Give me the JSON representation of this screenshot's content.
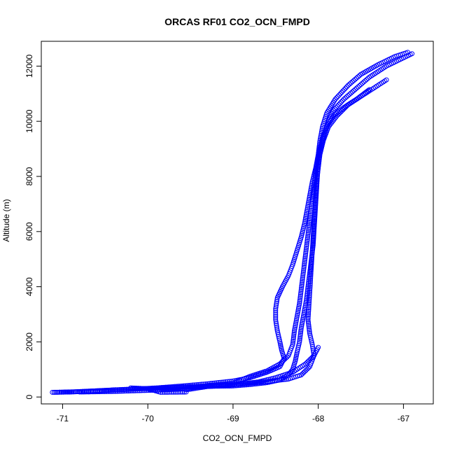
{
  "chart_data": {
    "type": "scatter",
    "title": "ORCAS RF01 CO2_OCN_FMPD",
    "xlabel": "CO2_OCN_FMPD",
    "ylabel": "Altitude (m)",
    "xlim": [
      -71.25,
      -66.65
    ],
    "ylim": [
      -250,
      12900
    ],
    "xticks": [
      -71,
      -70,
      -69,
      -68,
      -67
    ],
    "yticks": [
      0,
      2000,
      4000,
      6000,
      8000,
      10000,
      12000
    ],
    "grid": false,
    "marker": "open-circle",
    "color": "#0000ff",
    "series": [
      {
        "points": [
          [
            -71.12,
            170
          ],
          [
            -70.9,
            180
          ],
          [
            -70.7,
            210
          ],
          [
            -70.4,
            260
          ],
          [
            -70.1,
            300
          ],
          [
            -69.8,
            330
          ],
          [
            -69.5,
            360
          ],
          [
            -69.2,
            390
          ],
          [
            -69.0,
            400
          ],
          [
            -68.8,
            450
          ],
          [
            -68.6,
            520
          ],
          [
            -68.45,
            620
          ],
          [
            -68.35,
            800
          ],
          [
            -68.3,
            1000
          ],
          [
            -68.27,
            1300
          ],
          [
            -68.25,
            1600
          ],
          [
            -68.22,
            2000
          ],
          [
            -68.2,
            2500
          ],
          [
            -68.17,
            3000
          ],
          [
            -68.14,
            3500
          ],
          [
            -68.12,
            4000
          ],
          [
            -68.1,
            4500
          ],
          [
            -68.08,
            5000
          ],
          [
            -68.06,
            5500
          ],
          [
            -68.05,
            6000
          ],
          [
            -68.04,
            6500
          ],
          [
            -68.03,
            7000
          ],
          [
            -68.02,
            7500
          ],
          [
            -68.01,
            8000
          ],
          [
            -68.0,
            8500
          ],
          [
            -67.97,
            9000
          ],
          [
            -67.93,
            9500
          ],
          [
            -67.88,
            10000
          ],
          [
            -67.82,
            10400
          ],
          [
            -67.7,
            10800
          ],
          [
            -67.55,
            11200
          ],
          [
            -67.4,
            11600
          ],
          [
            -67.2,
            12000
          ],
          [
            -67.0,
            12300
          ],
          [
            -66.9,
            12450
          ]
        ]
      },
      {
        "points": [
          [
            -66.95,
            12500
          ],
          [
            -67.1,
            12350
          ],
          [
            -67.3,
            12050
          ],
          [
            -67.5,
            11700
          ],
          [
            -67.65,
            11300
          ],
          [
            -67.8,
            10800
          ],
          [
            -67.9,
            10300
          ],
          [
            -67.95,
            9800
          ],
          [
            -67.98,
            9300
          ],
          [
            -68.0,
            8800
          ],
          [
            -68.03,
            8300
          ],
          [
            -68.07,
            7800
          ],
          [
            -68.1,
            7300
          ],
          [
            -68.13,
            6800
          ],
          [
            -68.16,
            6300
          ],
          [
            -68.2,
            5800
          ],
          [
            -68.25,
            5300
          ],
          [
            -68.3,
            4800
          ],
          [
            -68.35,
            4400
          ],
          [
            -68.42,
            4000
          ],
          [
            -68.48,
            3600
          ],
          [
            -68.5,
            3200
          ],
          [
            -68.5,
            2800
          ],
          [
            -68.48,
            2400
          ],
          [
            -68.45,
            2000
          ],
          [
            -68.43,
            1700
          ],
          [
            -68.4,
            1400
          ],
          [
            -68.45,
            1100
          ],
          [
            -68.6,
            900
          ],
          [
            -68.8,
            700
          ],
          [
            -69.0,
            580
          ],
          [
            -69.3,
            480
          ],
          [
            -69.6,
            400
          ],
          [
            -69.9,
            330
          ],
          [
            -70.2,
            280
          ],
          [
            -70.5,
            240
          ],
          [
            -70.85,
            190
          ],
          [
            -71.1,
            170
          ]
        ]
      },
      {
        "points": [
          [
            -67.4,
            11150
          ],
          [
            -67.55,
            10800
          ],
          [
            -67.7,
            10500
          ],
          [
            -67.82,
            10200
          ],
          [
            -67.9,
            9800
          ],
          [
            -67.95,
            9400
          ],
          [
            -67.99,
            8900
          ],
          [
            -68.02,
            8400
          ],
          [
            -68.04,
            7900
          ],
          [
            -68.06,
            7400
          ],
          [
            -68.08,
            6900
          ],
          [
            -68.1,
            6400
          ],
          [
            -68.12,
            5900
          ],
          [
            -68.14,
            5400
          ],
          [
            -68.16,
            4900
          ],
          [
            -68.18,
            4400
          ],
          [
            -68.2,
            3900
          ],
          [
            -68.22,
            3400
          ],
          [
            -68.25,
            2900
          ],
          [
            -68.28,
            2400
          ],
          [
            -68.3,
            1900
          ],
          [
            -68.35,
            1500
          ],
          [
            -68.45,
            1200
          ],
          [
            -68.6,
            950
          ],
          [
            -68.8,
            750
          ],
          [
            -69.0,
            500
          ],
          [
            -69.3,
            420
          ],
          [
            -69.55,
            300
          ],
          [
            -69.8,
            260
          ],
          [
            -70.1,
            230
          ],
          [
            -70.4,
            200
          ],
          [
            -70.8,
            180
          ]
        ]
      },
      {
        "points": [
          [
            -68.0,
            1800
          ],
          [
            -68.05,
            1500
          ],
          [
            -68.15,
            1200
          ],
          [
            -68.3,
            900
          ],
          [
            -68.5,
            700
          ],
          [
            -68.7,
            550
          ],
          [
            -69.0,
            440
          ],
          [
            -69.3,
            380
          ],
          [
            -69.55,
            260
          ],
          [
            -69.55,
            180
          ],
          [
            -69.85,
            170
          ],
          [
            -70.0,
            300
          ],
          [
            -70.2,
            330
          ]
        ]
      },
      {
        "points": [
          [
            -67.2,
            11500
          ],
          [
            -67.35,
            11200
          ],
          [
            -67.5,
            10900
          ],
          [
            -67.65,
            10600
          ],
          [
            -67.78,
            10200
          ],
          [
            -67.88,
            9800
          ],
          [
            -67.94,
            9300
          ],
          [
            -67.98,
            8800
          ],
          [
            -68.0,
            8300
          ],
          [
            -68.02,
            7800
          ],
          [
            -68.03,
            7300
          ],
          [
            -68.04,
            6800
          ],
          [
            -68.05,
            6300
          ],
          [
            -68.06,
            5800
          ],
          [
            -68.07,
            5300
          ],
          [
            -68.08,
            4800
          ],
          [
            -68.09,
            4300
          ],
          [
            -68.1,
            3800
          ],
          [
            -68.11,
            3300
          ],
          [
            -68.12,
            2800
          ],
          [
            -68.1,
            2300
          ],
          [
            -68.07,
            1900
          ],
          [
            -68.05,
            1500
          ],
          [
            -68.1,
            1100
          ],
          [
            -68.2,
            800
          ],
          [
            -68.35,
            650
          ],
          [
            -68.6,
            560
          ],
          [
            -68.9,
            470
          ],
          [
            -69.2,
            420
          ],
          [
            -69.6,
            360
          ],
          [
            -70.0,
            310
          ]
        ]
      }
    ]
  }
}
